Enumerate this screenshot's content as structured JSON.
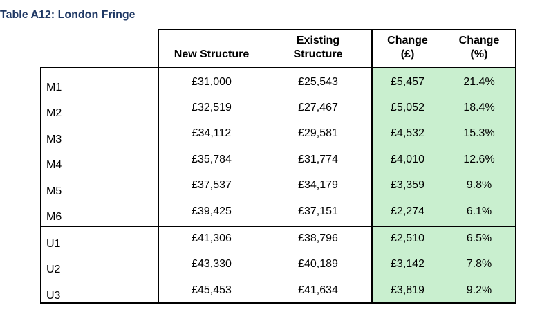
{
  "title": "Table A12: London Fringe",
  "headers": {
    "new": "New Structure",
    "existing_line1": "Existing",
    "existing_line2": "Structure",
    "change_gbp_line1": "Change",
    "change_gbp_line2": "(£)",
    "change_pct_line1": "Change",
    "change_pct_line2": "(%)"
  },
  "colors": {
    "title": "#1f3864",
    "highlight": "#c9efcf",
    "border": "#000000"
  },
  "rows": [
    {
      "label": "M1",
      "new": "£31,000",
      "existing": "£25,543",
      "change_gbp": "£5,457",
      "change_pct": "21.4%"
    },
    {
      "label": "M2",
      "new": "£32,519",
      "existing": "£27,467",
      "change_gbp": "£5,052",
      "change_pct": "18.4%"
    },
    {
      "label": "M3",
      "new": "£34,112",
      "existing": "£29,581",
      "change_gbp": "£4,532",
      "change_pct": "15.3%"
    },
    {
      "label": "M4",
      "new": "£35,784",
      "existing": "£31,774",
      "change_gbp": "£4,010",
      "change_pct": "12.6%"
    },
    {
      "label": "M5",
      "new": "£37,537",
      "existing": "£34,179",
      "change_gbp": "£3,359",
      "change_pct": "9.8%"
    },
    {
      "label": "M6",
      "new": "£39,425",
      "existing": "£37,151",
      "change_gbp": "£2,274",
      "change_pct": "6.1%"
    },
    {
      "label": "U1",
      "new": "£41,306",
      "existing": "£38,796",
      "change_gbp": "£2,510",
      "change_pct": "6.5%"
    },
    {
      "label": "U2",
      "new": "£43,330",
      "existing": "£40,189",
      "change_gbp": "£3,142",
      "change_pct": "7.8%"
    },
    {
      "label": "U3",
      "new": "£45,453",
      "existing": "£41,634",
      "change_gbp": "£3,819",
      "change_pct": "9.2%"
    }
  ]
}
